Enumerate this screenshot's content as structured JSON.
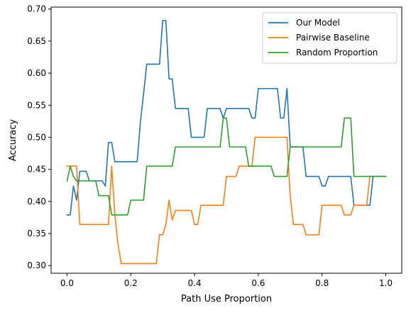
{
  "chart_data": {
    "type": "line",
    "title": "",
    "xlabel": "Path Use Proportion",
    "ylabel": "Accuracy",
    "xlim": [
      -0.05,
      1.05
    ],
    "ylim": [
      0.288,
      0.703
    ],
    "xticks": [
      0.0,
      0.2,
      0.4,
      0.6,
      0.8,
      1.0
    ],
    "xtick_labels": [
      "0.0",
      "0.2",
      "0.4",
      "0.6",
      "0.8",
      "1.0"
    ],
    "yticks": [
      0.3,
      0.35,
      0.4,
      0.45,
      0.5,
      0.55,
      0.6,
      0.65,
      0.7
    ],
    "ytick_labels": [
      "0.30",
      "0.35",
      "0.40",
      "0.45",
      "0.50",
      "0.55",
      "0.60",
      "0.65",
      "0.70"
    ],
    "grid": false,
    "legend_position": "top-right",
    "series": [
      {
        "name": "Our Model",
        "color": "#1f77b4",
        "x": [
          0.0,
          0.01,
          0.02,
          0.03,
          0.04,
          0.05,
          0.06,
          0.07,
          0.08,
          0.09,
          0.1,
          0.11,
          0.12,
          0.13,
          0.14,
          0.15,
          0.16,
          0.17,
          0.18,
          0.19,
          0.2,
          0.21,
          0.22,
          0.23,
          0.24,
          0.25,
          0.26,
          0.27,
          0.28,
          0.29,
          0.3,
          0.31,
          0.32,
          0.33,
          0.34,
          0.35,
          0.36,
          0.37,
          0.38,
          0.39,
          0.4,
          0.41,
          0.42,
          0.43,
          0.44,
          0.45,
          0.46,
          0.47,
          0.48,
          0.49,
          0.5,
          0.51,
          0.52,
          0.53,
          0.54,
          0.55,
          0.56,
          0.57,
          0.58,
          0.59,
          0.6,
          0.61,
          0.62,
          0.63,
          0.64,
          0.65,
          0.66,
          0.67,
          0.68,
          0.69,
          0.7,
          0.71,
          0.72,
          0.73,
          0.74,
          0.75,
          0.76,
          0.77,
          0.78,
          0.79,
          0.8,
          0.81,
          0.82,
          0.83,
          0.84,
          0.85,
          0.86,
          0.87,
          0.88,
          0.89,
          0.9,
          0.91,
          0.92,
          0.93,
          0.94,
          0.95,
          0.96,
          0.97,
          0.98,
          0.99,
          1.0
        ],
        "values": [
          0.379,
          0.379,
          0.424,
          0.402,
          0.447,
          0.447,
          0.447,
          0.432,
          0.432,
          0.432,
          0.432,
          0.432,
          0.424,
          0.492,
          0.492,
          0.462,
          0.462,
          0.462,
          0.462,
          0.462,
          0.462,
          0.462,
          0.462,
          0.523,
          0.568,
          0.614,
          0.614,
          0.614,
          0.614,
          0.614,
          0.682,
          0.682,
          0.591,
          0.591,
          0.545,
          0.545,
          0.545,
          0.545,
          0.545,
          0.5,
          0.5,
          0.5,
          0.5,
          0.5,
          0.545,
          0.545,
          0.545,
          0.545,
          0.545,
          0.53,
          0.545,
          0.545,
          0.545,
          0.545,
          0.545,
          0.545,
          0.545,
          0.545,
          0.53,
          0.53,
          0.576,
          0.576,
          0.576,
          0.576,
          0.576,
          0.576,
          0.576,
          0.53,
          0.53,
          0.576,
          0.485,
          0.485,
          0.485,
          0.485,
          0.485,
          0.439,
          0.439,
          0.439,
          0.439,
          0.439,
          0.424,
          0.424,
          0.439,
          0.439,
          0.439,
          0.439,
          0.439,
          0.439,
          0.439,
          0.439,
          0.394,
          0.394,
          0.394,
          0.394,
          0.394,
          0.394,
          0.439,
          0.439,
          0.439,
          0.439,
          0.439
        ]
      },
      {
        "name": "Pairwise Baseline",
        "color": "#ff7f0e",
        "x": [
          0.0,
          0.01,
          0.02,
          0.03,
          0.04,
          0.05,
          0.06,
          0.07,
          0.08,
          0.09,
          0.1,
          0.11,
          0.12,
          0.13,
          0.14,
          0.15,
          0.16,
          0.17,
          0.18,
          0.19,
          0.2,
          0.21,
          0.22,
          0.23,
          0.24,
          0.25,
          0.26,
          0.27,
          0.28,
          0.29,
          0.3,
          0.31,
          0.32,
          0.33,
          0.34,
          0.35,
          0.36,
          0.37,
          0.38,
          0.39,
          0.4,
          0.41,
          0.42,
          0.43,
          0.44,
          0.45,
          0.46,
          0.47,
          0.48,
          0.49,
          0.5,
          0.51,
          0.52,
          0.53,
          0.54,
          0.55,
          0.56,
          0.57,
          0.58,
          0.59,
          0.6,
          0.61,
          0.62,
          0.63,
          0.64,
          0.65,
          0.66,
          0.67,
          0.68,
          0.69,
          0.7,
          0.71,
          0.72,
          0.73,
          0.74,
          0.75,
          0.76,
          0.77,
          0.78,
          0.79,
          0.8,
          0.81,
          0.82,
          0.83,
          0.84,
          0.85,
          0.86,
          0.87,
          0.88,
          0.89,
          0.9,
          0.91,
          0.92,
          0.93,
          0.94,
          0.95
        ],
        "values": [
          0.455,
          0.455,
          0.455,
          0.455,
          0.364,
          0.364,
          0.364,
          0.364,
          0.364,
          0.364,
          0.364,
          0.364,
          0.364,
          0.364,
          0.455,
          0.379,
          0.333,
          0.303,
          0.303,
          0.303,
          0.303,
          0.303,
          0.303,
          0.303,
          0.303,
          0.303,
          0.303,
          0.303,
          0.303,
          0.348,
          0.348,
          0.364,
          0.402,
          0.371,
          0.386,
          0.386,
          0.386,
          0.386,
          0.386,
          0.386,
          0.364,
          0.364,
          0.394,
          0.394,
          0.394,
          0.394,
          0.394,
          0.394,
          0.394,
          0.394,
          0.439,
          0.439,
          0.439,
          0.439,
          0.455,
          0.455,
          0.455,
          0.455,
          0.455,
          0.5,
          0.5,
          0.5,
          0.5,
          0.5,
          0.5,
          0.5,
          0.5,
          0.5,
          0.5,
          0.5,
          0.409,
          0.364,
          0.364,
          0.364,
          0.364,
          0.348,
          0.348,
          0.348,
          0.348,
          0.348,
          0.394,
          0.394,
          0.394,
          0.394,
          0.394,
          0.394,
          0.394,
          0.379,
          0.379,
          0.379,
          0.394,
          0.394,
          0.394,
          0.394,
          0.394,
          0.439
        ]
      },
      {
        "name": "Random Proportion",
        "color": "#2ca02c",
        "x": [
          0.0,
          0.01,
          0.02,
          0.03,
          0.04,
          0.05,
          0.06,
          0.07,
          0.08,
          0.09,
          0.1,
          0.11,
          0.12,
          0.13,
          0.14,
          0.15,
          0.16,
          0.17,
          0.18,
          0.19,
          0.2,
          0.21,
          0.22,
          0.23,
          0.24,
          0.25,
          0.26,
          0.27,
          0.28,
          0.29,
          0.3,
          0.31,
          0.32,
          0.33,
          0.34,
          0.35,
          0.36,
          0.37,
          0.38,
          0.39,
          0.4,
          0.41,
          0.42,
          0.43,
          0.44,
          0.45,
          0.46,
          0.47,
          0.48,
          0.49,
          0.5,
          0.51,
          0.52,
          0.53,
          0.54,
          0.55,
          0.56,
          0.57,
          0.58,
          0.59,
          0.6,
          0.61,
          0.62,
          0.63,
          0.64,
          0.65,
          0.66,
          0.67,
          0.68,
          0.69,
          0.7,
          0.71,
          0.72,
          0.73,
          0.74,
          0.75,
          0.76,
          0.77,
          0.78,
          0.79,
          0.8,
          0.81,
          0.82,
          0.83,
          0.84,
          0.85,
          0.86,
          0.87,
          0.88,
          0.89,
          0.9,
          0.91,
          0.92,
          0.93,
          0.94,
          0.95,
          0.96,
          0.97,
          0.98,
          0.99,
          1.0
        ],
        "values": [
          0.432,
          0.455,
          0.439,
          0.432,
          0.432,
          0.432,
          0.432,
          0.432,
          0.432,
          0.432,
          0.409,
          0.409,
          0.409,
          0.409,
          0.379,
          0.379,
          0.379,
          0.379,
          0.379,
          0.379,
          0.402,
          0.402,
          0.402,
          0.402,
          0.402,
          0.455,
          0.455,
          0.455,
          0.455,
          0.455,
          0.455,
          0.455,
          0.455,
          0.455,
          0.485,
          0.485,
          0.485,
          0.485,
          0.485,
          0.485,
          0.485,
          0.485,
          0.485,
          0.485,
          0.485,
          0.485,
          0.485,
          0.485,
          0.485,
          0.53,
          0.53,
          0.485,
          0.485,
          0.485,
          0.485,
          0.485,
          0.485,
          0.455,
          0.455,
          0.455,
          0.455,
          0.455,
          0.455,
          0.455,
          0.455,
          0.439,
          0.439,
          0.439,
          0.439,
          0.439,
          0.485,
          0.485,
          0.485,
          0.485,
          0.485,
          0.485,
          0.485,
          0.485,
          0.485,
          0.485,
          0.485,
          0.485,
          0.485,
          0.485,
          0.485,
          0.485,
          0.485,
          0.53,
          0.53,
          0.53,
          0.439,
          0.439,
          0.439,
          0.439,
          0.439,
          0.439,
          0.439,
          0.439,
          0.439,
          0.439,
          0.439
        ]
      }
    ]
  }
}
